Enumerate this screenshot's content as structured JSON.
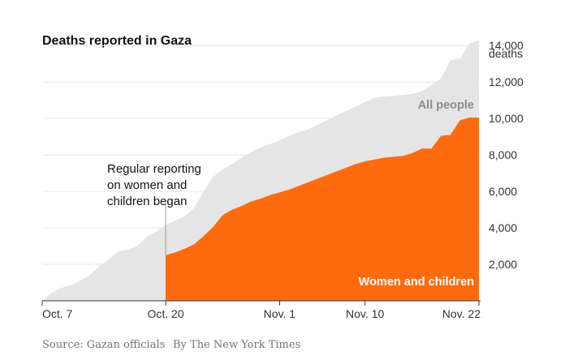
{
  "chart_data": {
    "type": "area",
    "title": "Deaths reported in Gaza",
    "y_unit": "deaths",
    "ylim": [
      0,
      14500
    ],
    "y_ticks": [
      2000,
      4000,
      6000,
      8000,
      10000,
      12000,
      14000
    ],
    "y_tick_labels": [
      "2,000",
      "4,000",
      "6,000",
      "8,000",
      "10,000",
      "12,000",
      "14,000"
    ],
    "x_range_days": [
      0,
      46
    ],
    "x_ticks": [
      {
        "day": 0,
        "label": "Oct. 7"
      },
      {
        "day": 13,
        "label": "Oct. 20"
      },
      {
        "day": 25,
        "label": "Nov. 1"
      },
      {
        "day": 34,
        "label": "Nov. 10"
      },
      {
        "day": 46,
        "label": "Nov. 22"
      }
    ],
    "series": [
      {
        "name": "All people",
        "color": "#e5e5e5",
        "label_color": "#8c8c8c",
        "x": [
          0,
          1,
          2,
          3,
          4,
          5,
          6,
          7,
          8,
          9,
          10,
          11,
          12,
          13,
          14,
          15,
          16,
          17,
          18,
          19,
          20,
          21,
          22,
          23,
          24,
          25,
          26,
          27,
          28,
          29,
          30,
          31,
          32,
          33,
          34,
          35,
          36,
          37,
          38,
          39,
          40,
          41,
          42,
          43,
          44,
          45,
          46
        ],
        "values": [
          0,
          450,
          700,
          850,
          1100,
          1400,
          1900,
          2250,
          2700,
          2800,
          3000,
          3500,
          3800,
          4150,
          4400,
          4650,
          5100,
          6000,
          6800,
          7200,
          7500,
          7850,
          8150,
          8400,
          8600,
          8800,
          9050,
          9250,
          9400,
          9650,
          9900,
          10150,
          10400,
          10650,
          10900,
          11150,
          11200,
          11250,
          11300,
          11350,
          11500,
          11850,
          12200,
          13200,
          13300,
          14100,
          14300
        ]
      },
      {
        "name": "Women and children",
        "color": "#fe6b0f",
        "label_color": "#ffffff",
        "x": [
          13,
          14,
          15,
          16,
          17,
          18,
          19,
          20,
          21,
          22,
          23,
          24,
          25,
          26,
          27,
          28,
          29,
          30,
          31,
          32,
          33,
          34,
          35,
          36,
          37,
          38,
          39,
          40,
          41,
          42,
          43,
          44,
          45,
          46
        ],
        "values": [
          2500,
          2650,
          2850,
          3100,
          3550,
          4050,
          4700,
          5000,
          5200,
          5450,
          5600,
          5800,
          5950,
          6100,
          6300,
          6500,
          6700,
          6900,
          7100,
          7300,
          7500,
          7650,
          7750,
          7850,
          7900,
          7950,
          8100,
          8350,
          8350,
          9050,
          9100,
          9900,
          10050,
          10050
        ]
      }
    ],
    "annotations": [
      {
        "day": 13,
        "lines": [
          "Regular reporting",
          "on women and",
          "children began"
        ]
      }
    ]
  },
  "source": {
    "text": "Source: Gazan officials",
    "byline": "By The New York Times"
  }
}
